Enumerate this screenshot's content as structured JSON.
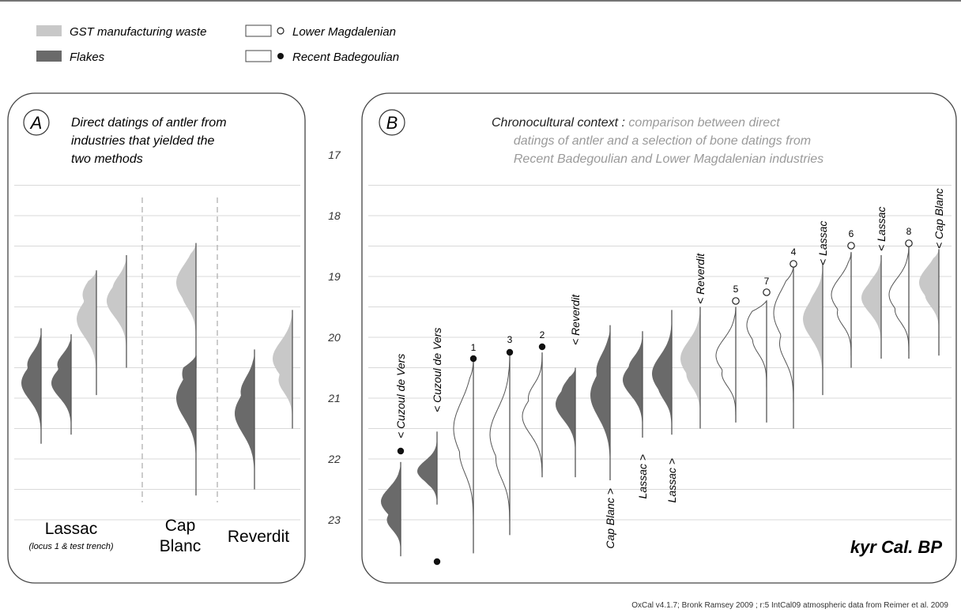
{
  "legend": {
    "items": [
      {
        "label": "GST manufacturing waste",
        "color": "#c8c8c8",
        "marker": "swatch"
      },
      {
        "label": "Flakes",
        "color": "#6a6a6a",
        "marker": "swatch"
      },
      {
        "label": "Lower Magdalenian",
        "color": "#ffffff",
        "marker": "open-circle"
      },
      {
        "label": "Recent Badegoulian",
        "color": "#ffffff",
        "marker": "filled-circle"
      }
    ]
  },
  "axis": {
    "ticks": [
      "17",
      "18",
      "19",
      "20",
      "21",
      "22",
      "23"
    ],
    "unit_label": "kyr Cal. BP"
  },
  "panelA": {
    "letter": "A",
    "title_lines": [
      "Direct datings of antler from",
      "industries that yielded the",
      "two methods"
    ],
    "sites": [
      {
        "name_lines": [
          "Lassac"
        ],
        "sub": "(locus 1 & test trench)"
      },
      {
        "name_lines": [
          "Cap",
          "Blanc"
        ],
        "sub": ""
      },
      {
        "name_lines": [
          "Reverdit"
        ],
        "sub": ""
      }
    ]
  },
  "panelB": {
    "letter": "B",
    "title_dark": "Chronocultural context : ",
    "title_lines": [
      "comparison between direct",
      "datings of antler and a selection of bone datings from",
      "Recent Badegoulian and Lower Magdalenian industries"
    ]
  },
  "footer": {
    "credit": "OxCal v4.1.7; Bronk Ramsey 2009 ; r:5 IntCal09 atmospheric data from Reimer et al. 2009"
  },
  "colors": {
    "gst": "#c8c8c8",
    "flakes": "#6a6a6a",
    "grid": "#d9d9d9",
    "line": "#555555",
    "title_grey": "#9a9a9a"
  },
  "chart_data": {
    "type": "area",
    "ylabel": "kyr Cal. BP",
    "ylim": [
      16.5,
      23.7
    ],
    "y_reversed": true,
    "grid": true,
    "legend_position": "top-left",
    "panels": [
      {
        "panel": "A",
        "series": [
          {
            "group": "Lassac",
            "category": "Flakes",
            "range": [
              19.85,
              21.75
            ],
            "peak": 20.75,
            "peak2": 20.45
          },
          {
            "group": "Lassac",
            "category": "Flakes",
            "range": [
              19.95,
              21.6
            ],
            "peak": 20.75,
            "peak2": 20.45
          },
          {
            "group": "Lassac",
            "category": "GST manufacturing waste",
            "range": [
              18.9,
              20.95
            ],
            "peak": 19.7,
            "peak2": 19.3
          },
          {
            "group": "Lassac",
            "category": "GST manufacturing waste",
            "range": [
              18.65,
              20.5
            ],
            "peak": 19.4,
            "peak2": 19.2
          },
          {
            "group": "Cap Blanc",
            "category": "GST manufacturing waste",
            "range": [
              18.45,
              20.5
            ],
            "peak": 19.1,
            "peak2": 19.3
          },
          {
            "group": "Cap Blanc",
            "category": "Flakes",
            "range": [
              20.3,
              22.6
            ],
            "peak": 21.0,
            "peak2": 20.6
          },
          {
            "group": "Reverdit",
            "category": "Flakes",
            "range": [
              20.2,
              22.5
            ],
            "peak": 21.25,
            "peak2": 20.9
          },
          {
            "group": "Reverdit",
            "category": "GST manufacturing waste",
            "range": [
              19.55,
              21.5
            ],
            "peak": 20.35,
            "peak2": 20.7
          }
        ]
      },
      {
        "panel": "B",
        "series": [
          {
            "label": "Cuzoul de Vers",
            "category": "Flakes",
            "marker": "filled-circle",
            "range": [
              22.05,
              23.6
            ],
            "peak": 22.7,
            "peak2": 23.0
          },
          {
            "label": "Cuzoul de Vers",
            "category": "Flakes",
            "marker": "filled-circle",
            "range": [
              21.55,
              22.75
            ],
            "peak": 22.2,
            "peak2": 22.3
          },
          {
            "label": "1",
            "category": "Recent Badegoulian",
            "marker": "filled-circle",
            "range": [
              20.4,
              23.55
            ],
            "peak": 21.5,
            "peak2": 21.9
          },
          {
            "label": "3",
            "category": "Recent Badegoulian",
            "marker": "filled-circle",
            "range": [
              20.3,
              23.25
            ],
            "peak": 21.6,
            "peak2": 22.0
          },
          {
            "label": "2",
            "category": "Recent Badegoulian",
            "marker": "filled-circle",
            "range": [
              20.25,
              22.3
            ],
            "peak": 21.3,
            "peak2": 21.0
          },
          {
            "label": "Reverdit",
            "category": "Flakes",
            "marker": "none",
            "range": [
              20.5,
              22.3
            ],
            "peak": 21.1,
            "peak2": 20.9
          },
          {
            "label": "Cap Blanc",
            "category": "Flakes",
            "marker": "none",
            "range": [
              19.8,
              22.35
            ],
            "peak": 20.95,
            "peak2": 20.55
          },
          {
            "label": "Lassac",
            "category": "Flakes",
            "marker": "none",
            "range": [
              19.9,
              21.65
            ],
            "peak": 20.7,
            "peak2": 20.5
          },
          {
            "label": "Lassac",
            "category": "Flakes",
            "marker": "none",
            "range": [
              19.55,
              21.6
            ],
            "peak": 20.6,
            "peak2": 20.8
          },
          {
            "label": "Reverdit",
            "category": "GST manufacturing waste",
            "marker": "none",
            "range": [
              19.5,
              21.5
            ],
            "peak": 20.35,
            "peak2": 20.6
          },
          {
            "label": "5",
            "category": "Lower Magdalenian",
            "marker": "open-circle",
            "range": [
              19.5,
              21.4
            ],
            "peak": 20.3,
            "peak2": 20.6
          },
          {
            "label": "7",
            "category": "Lower Magdalenian",
            "marker": "open-circle",
            "range": [
              19.4,
              21.4
            ],
            "peak": 19.8,
            "peak2": 20.05
          },
          {
            "label": "4",
            "category": "Lower Magdalenian",
            "marker": "open-circle",
            "range": [
              18.85,
              21.5
            ],
            "peak": 19.6,
            "peak2": 20.1
          },
          {
            "label": "Lassac",
            "category": "GST manufacturing waste",
            "marker": "none",
            "range": [
              18.8,
              20.95
            ],
            "peak": 19.7,
            "peak2": 19.5
          },
          {
            "label": "6",
            "category": "Lower Magdalenian",
            "marker": "open-circle",
            "range": [
              18.6,
              20.5
            ],
            "peak": 19.3,
            "peak2": 19.6
          },
          {
            "label": "Lassac",
            "category": "GST manufacturing waste",
            "marker": "none",
            "range": [
              18.65,
              20.35
            ],
            "peak": 19.35,
            "peak2": 19.2
          },
          {
            "label": "8",
            "category": "Lower Magdalenian",
            "marker": "open-circle",
            "range": [
              18.5,
              20.35
            ],
            "peak": 19.3,
            "peak2": 19.55
          },
          {
            "label": "Cap Blanc",
            "category": "GST manufacturing waste",
            "marker": "none",
            "range": [
              18.55,
              20.3
            ],
            "peak": 19.1,
            "peak2": 19.3
          }
        ]
      }
    ]
  }
}
